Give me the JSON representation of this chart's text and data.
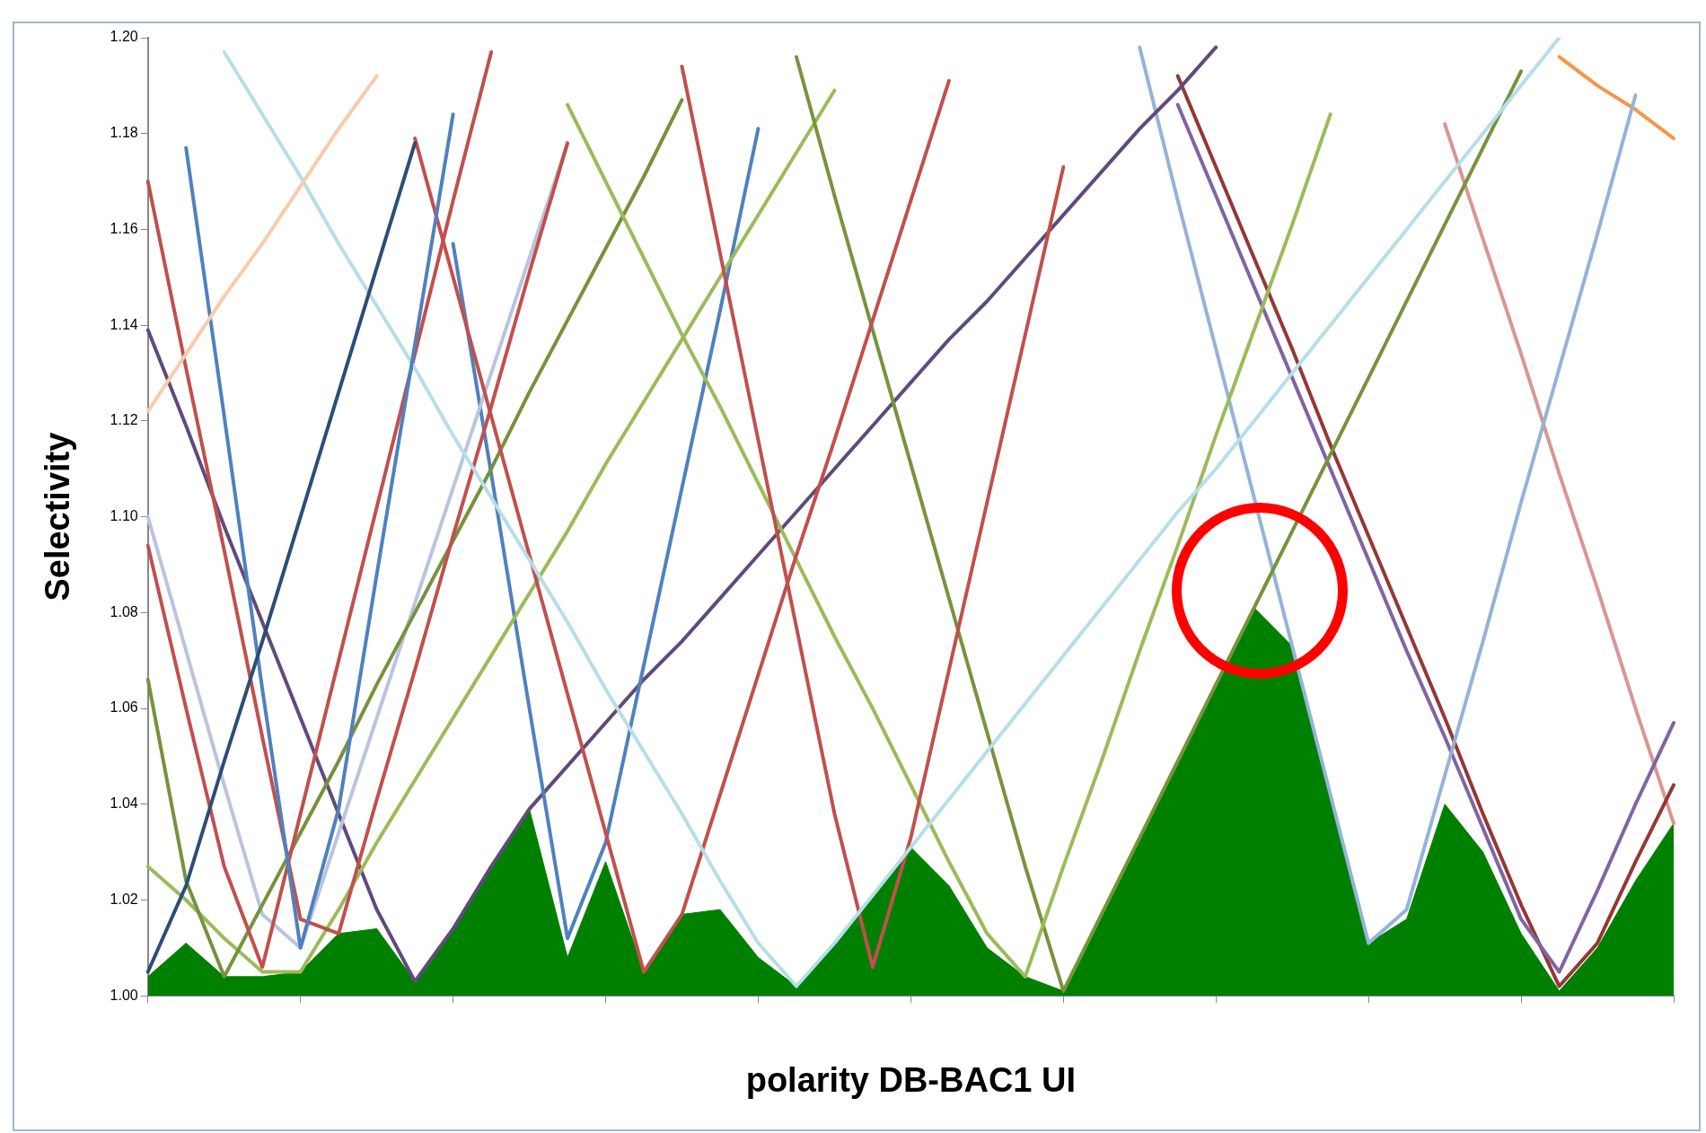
{
  "chart_data": {
    "type": "line",
    "xlabel": "polarity DB-BAC1 UI",
    "ylabel": "Selectivity",
    "categories": [
      null,
      null,
      null,
      null,
      null,
      null,
      null,
      null,
      null,
      null,
      null,
      null,
      null,
      null,
      null,
      null,
      null,
      null,
      null,
      null,
      null,
      null,
      null,
      null,
      null,
      null,
      null,
      null,
      null,
      null,
      null,
      null,
      null,
      null,
      null,
      null,
      null,
      null,
      null,
      null,
      null
    ],
    "ylim": [
      1.0,
      1.2
    ],
    "yticks": [
      {
        "value": 1.0,
        "label": "1.00"
      },
      {
        "value": 1.02,
        "label": "1.02"
      },
      {
        "value": 1.04,
        "label": "1.04"
      },
      {
        "value": 1.06,
        "label": "1.06"
      },
      {
        "value": 1.08,
        "label": "1.08"
      },
      {
        "value": 1.1,
        "label": "1.10"
      },
      {
        "value": 1.12,
        "label": "1.12"
      },
      {
        "value": 1.14,
        "label": "1.14"
      },
      {
        "value": 1.16,
        "label": "1.16"
      },
      {
        "value": 1.18,
        "label": "1.18"
      },
      {
        "value": 1.2,
        "label": "1.20"
      }
    ],
    "tick_labels": "y",
    "grid": false,
    "legend": false,
    "series": [
      {
        "type": "area",
        "color": "#008000",
        "values": [
          1.004,
          1.011,
          1.004,
          1.004,
          1.005,
          1.013,
          1.014,
          1.003,
          1.014,
          1.027,
          1.039,
          1.008,
          1.028,
          1.005,
          1.017,
          1.018,
          1.008,
          1.002,
          1.011,
          1.021,
          1.031,
          1.023,
          1.01,
          1.004,
          1.001,
          1.017,
          1.033,
          1.049,
          1.065,
          1.081,
          1.073,
          1.042,
          1.011,
          1.016,
          1.04,
          1.03,
          1.013,
          1.001,
          1.01,
          1.024,
          1.036
        ]
      },
      {
        "color": "#f8cbad",
        "values": [
          1.122,
          1.134,
          1.146,
          1.157,
          1.169,
          1.181,
          1.192,
          null,
          null,
          null,
          null,
          null,
          null,
          null,
          null,
          null,
          null,
          null,
          null,
          null,
          null,
          null,
          null,
          null,
          null,
          null,
          null,
          null,
          null,
          null,
          null,
          null,
          null,
          null,
          null,
          null,
          null,
          null,
          null,
          null,
          null
        ]
      },
      {
        "color": "#2c4d75",
        "values": [
          1.005,
          1.023,
          1.049,
          1.074,
          1.1,
          1.126,
          1.152,
          1.178,
          null,
          null,
          null,
          null,
          null,
          null,
          null,
          null,
          null,
          null,
          null,
          null,
          null,
          null,
          null,
          null,
          null,
          null,
          null,
          null,
          null,
          null,
          null,
          null,
          null,
          null,
          null,
          null,
          null,
          null,
          null,
          null,
          null
        ]
      },
      {
        "color": "#4f81bd",
        "values": [
          null,
          1.177,
          1.121,
          1.064,
          1.01,
          1.039,
          1.088,
          1.136,
          1.184,
          null,
          null,
          null,
          null,
          null,
          null,
          null,
          null,
          null,
          null,
          null,
          null,
          null,
          null,
          null,
          null,
          null,
          null,
          null,
          null,
          null,
          null,
          null,
          null,
          null,
          null,
          null,
          null,
          null,
          null,
          null,
          null
        ]
      },
      {
        "color": "#b7dee8",
        "values": [
          null,
          null,
          1.197,
          1.184,
          1.171,
          1.157,
          1.144,
          1.131,
          1.117,
          1.104,
          1.091,
          1.078,
          1.064,
          1.051,
          1.038,
          1.024,
          1.011,
          1.002,
          1.011,
          1.021,
          1.031,
          1.041,
          1.051,
          1.061,
          1.071,
          1.081,
          1.091,
          1.101,
          1.11,
          1.12,
          1.13,
          1.14,
          1.15,
          1.16,
          1.17,
          1.18,
          1.19,
          1.2,
          null,
          null,
          null
        ]
      },
      {
        "color": "#c0504d",
        "values": [
          1.17,
          1.131,
          1.093,
          1.054,
          1.016,
          1.013,
          1.041,
          1.068,
          1.096,
          1.123,
          1.151,
          1.178,
          null,
          null,
          null,
          null,
          null,
          null,
          null,
          null,
          null,
          null,
          null,
          null,
          null,
          null,
          null,
          null,
          null,
          null,
          null,
          null,
          null,
          null,
          null,
          null,
          null,
          null,
          null,
          null,
          null
        ]
      },
      {
        "color": "#c0504d",
        "values": [
          1.094,
          1.06,
          1.027,
          1.006,
          1.038,
          1.07,
          1.102,
          1.134,
          1.166,
          1.197,
          null,
          null,
          null,
          null,
          null,
          null,
          null,
          null,
          null,
          null,
          null,
          null,
          null,
          null,
          null,
          null,
          null,
          null,
          null,
          null,
          null,
          null,
          null,
          null,
          null,
          null,
          null,
          null,
          null,
          null,
          null
        ]
      },
      {
        "color": "#c0504d",
        "values": [
          null,
          null,
          null,
          null,
          null,
          null,
          null,
          1.179,
          1.15,
          1.121,
          1.092,
          1.063,
          1.034,
          1.005,
          1.017,
          1.042,
          1.067,
          1.092,
          1.116,
          1.141,
          1.166,
          1.191,
          null,
          null,
          null,
          null,
          null,
          null,
          null,
          null,
          null,
          null,
          null,
          null,
          null,
          null,
          null,
          null,
          null,
          null,
          null
        ]
      },
      {
        "color": "#c0504d",
        "values": [
          null,
          null,
          null,
          null,
          null,
          null,
          null,
          null,
          null,
          null,
          null,
          null,
          null,
          null,
          1.194,
          1.155,
          1.116,
          1.077,
          1.038,
          1.006,
          1.033,
          1.068,
          1.103,
          1.138,
          1.173,
          null,
          null,
          null,
          null,
          null,
          null,
          null,
          null,
          null,
          null,
          null,
          null,
          null,
          null,
          null,
          null
        ]
      },
      {
        "color": "#9bbb59",
        "values": [
          null,
          null,
          null,
          null,
          null,
          null,
          null,
          null,
          null,
          null,
          null,
          1.186,
          1.17,
          1.154,
          1.138,
          1.123,
          1.107,
          1.091,
          1.075,
          1.06,
          1.044,
          1.028,
          1.013,
          1.004,
          1.027,
          1.049,
          1.072,
          1.094,
          1.117,
          1.139,
          1.161,
          1.184,
          null,
          null,
          null,
          null,
          null,
          null,
          null,
          null,
          null
        ]
      },
      {
        "color": "#77933c",
        "values": [
          null,
          null,
          null,
          null,
          null,
          null,
          null,
          null,
          null,
          null,
          null,
          null,
          null,
          null,
          null,
          null,
          null,
          1.196,
          1.167,
          1.139,
          1.111,
          1.083,
          1.055,
          1.027,
          1.001,
          1.017,
          1.033,
          1.049,
          1.065,
          1.081,
          1.097,
          1.113,
          1.129,
          1.145,
          1.161,
          1.177,
          1.193,
          null,
          null,
          null,
          null
        ]
      },
      {
        "color": "#76923c",
        "values": [
          1.066,
          1.024,
          1.004,
          1.019,
          1.034,
          1.049,
          1.065,
          1.08,
          1.095,
          1.11,
          1.126,
          1.141,
          1.156,
          1.171,
          1.187,
          null,
          null,
          null,
          null,
          null,
          null,
          null,
          null,
          null,
          null,
          null,
          null,
          null,
          null,
          null,
          null,
          null,
          null,
          null,
          null,
          null,
          null,
          null,
          null,
          null,
          null
        ]
      },
      {
        "color": "#9bbb59",
        "values": [
          1.027,
          1.02,
          1.012,
          1.005,
          1.005,
          1.018,
          1.032,
          1.045,
          1.058,
          1.071,
          1.084,
          1.097,
          1.111,
          1.124,
          1.137,
          1.15,
          1.163,
          1.176,
          1.189,
          null,
          null,
          null,
          null,
          null,
          null,
          null,
          null,
          null,
          null,
          null,
          null,
          null,
          null,
          null,
          null,
          null,
          null,
          null,
          null,
          null,
          null
        ]
      },
      {
        "color": "#b9c4de",
        "values": [
          1.1,
          1.072,
          1.044,
          1.017,
          1.01,
          1.034,
          1.058,
          1.082,
          1.106,
          1.13,
          1.154,
          1.178,
          null,
          null,
          null,
          null,
          null,
          null,
          null,
          null,
          null,
          null,
          null,
          null,
          null,
          null,
          null,
          null,
          null,
          null,
          null,
          null,
          null,
          null,
          null,
          null,
          null,
          null,
          null,
          null,
          null
        ]
      },
      {
        "color": "#4f81bd",
        "values": [
          null,
          null,
          null,
          null,
          null,
          null,
          null,
          null,
          1.157,
          1.109,
          1.06,
          1.012,
          1.032,
          1.069,
          1.106,
          1.143,
          1.181,
          null,
          null,
          null,
          null,
          null,
          null,
          null,
          null,
          null,
          null,
          null,
          null,
          null,
          null,
          null,
          null,
          null,
          null,
          null,
          null,
          null,
          null,
          null,
          null
        ]
      },
      {
        "color": "#604a7b",
        "values": [
          1.139,
          1.119,
          1.098,
          1.078,
          1.058,
          1.038,
          1.018,
          1.003,
          1.014,
          1.027,
          1.039,
          1.048,
          1.057,
          1.066,
          1.074,
          1.083,
          1.092,
          1.101,
          1.11,
          1.119,
          1.128,
          1.137,
          1.145,
          1.154,
          1.163,
          1.172,
          1.181,
          1.189,
          1.198,
          null,
          null,
          null,
          null,
          null,
          null,
          null,
          null,
          null,
          null,
          null,
          null
        ]
      },
      {
        "color": "#95b3d7",
        "values": [
          null,
          null,
          null,
          null,
          null,
          null,
          null,
          null,
          null,
          null,
          null,
          null,
          null,
          null,
          null,
          null,
          null,
          null,
          null,
          null,
          null,
          null,
          null,
          null,
          null,
          null,
          1.198,
          1.166,
          1.135,
          1.104,
          1.073,
          1.042,
          1.011,
          1.018,
          1.046,
          1.074,
          1.103,
          1.131,
          1.159,
          1.188,
          null
        ]
      },
      {
        "color": "#8064a2",
        "values": [
          null,
          null,
          null,
          null,
          null,
          null,
          null,
          null,
          null,
          null,
          null,
          null,
          null,
          null,
          null,
          null,
          null,
          null,
          null,
          null,
          null,
          null,
          null,
          null,
          null,
          null,
          null,
          1.186,
          1.167,
          1.148,
          1.129,
          1.11,
          1.091,
          1.072,
          1.054,
          1.035,
          1.016,
          1.005,
          1.022,
          1.04,
          1.057
        ]
      },
      {
        "color": "#953735",
        "values": [
          null,
          null,
          null,
          null,
          null,
          null,
          null,
          null,
          null,
          null,
          null,
          null,
          null,
          null,
          null,
          null,
          null,
          null,
          null,
          null,
          null,
          null,
          null,
          null,
          null,
          null,
          null,
          1.192,
          1.173,
          1.154,
          1.135,
          1.115,
          1.096,
          1.077,
          1.058,
          1.038,
          1.019,
          1.002,
          1.011,
          1.028,
          1.044
        ]
      },
      {
        "color": "#d99694",
        "values": [
          null,
          null,
          null,
          null,
          null,
          null,
          null,
          null,
          null,
          null,
          null,
          null,
          null,
          null,
          null,
          null,
          null,
          null,
          null,
          null,
          null,
          null,
          null,
          null,
          null,
          null,
          null,
          null,
          null,
          null,
          null,
          null,
          null,
          null,
          1.182,
          1.158,
          1.134,
          1.109,
          1.085,
          1.06,
          1.036
        ]
      },
      {
        "color": "#f79646",
        "values": [
          null,
          null,
          null,
          null,
          null,
          null,
          null,
          null,
          null,
          null,
          null,
          null,
          null,
          null,
          null,
          null,
          null,
          null,
          null,
          null,
          null,
          null,
          null,
          null,
          null,
          null,
          null,
          null,
          null,
          null,
          null,
          null,
          null,
          null,
          null,
          null,
          null,
          1.196,
          1.19,
          1.185,
          1.179
        ]
      }
    ]
  }
}
